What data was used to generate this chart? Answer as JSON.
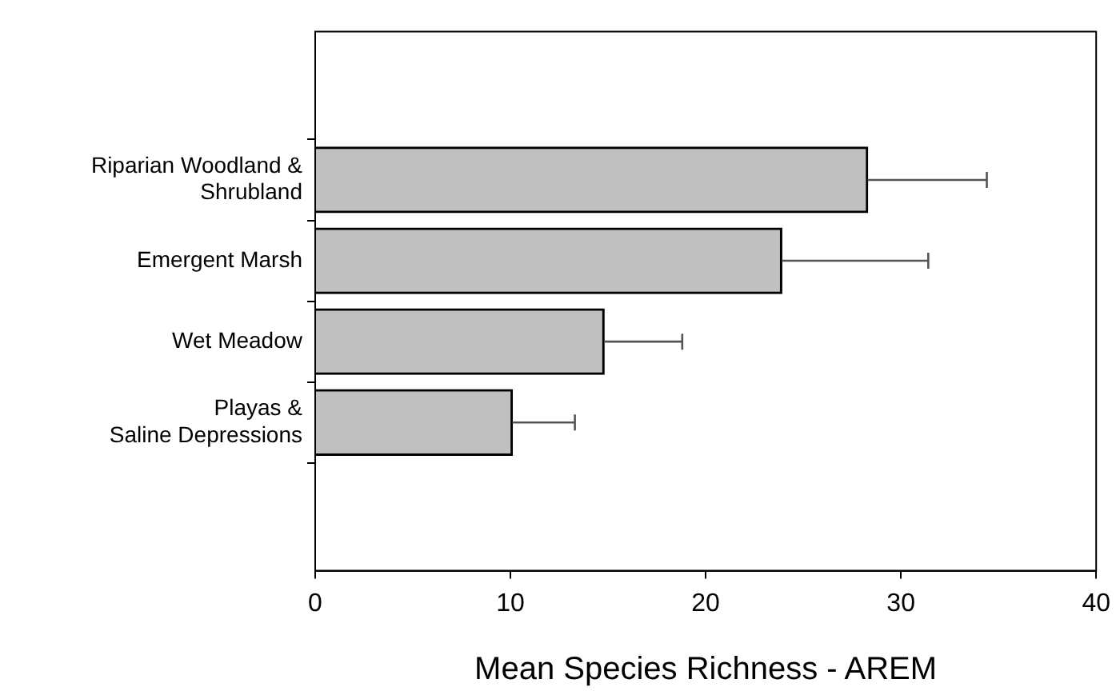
{
  "chart_data": {
    "type": "bar",
    "orientation": "horizontal",
    "xlabel": "Mean Species Richness - AREM",
    "categories": [
      "Riparian Woodland &\nShrubland",
      "Emergent Marsh",
      "Wet Meadow",
      "Playas &\nSaline Depressions"
    ],
    "values": [
      28.3,
      23.9,
      14.8,
      10.1
    ],
    "errors": [
      [
        28.3,
        34.4
      ],
      [
        23.9,
        31.4
      ],
      [
        14.8,
        18.8
      ],
      [
        10.1,
        13.3
      ]
    ],
    "color": "#c0c0c0",
    "xlim": [
      0,
      40
    ],
    "xticks": [
      0,
      10,
      20,
      30,
      40
    ],
    "grid": false,
    "legend": false
  }
}
